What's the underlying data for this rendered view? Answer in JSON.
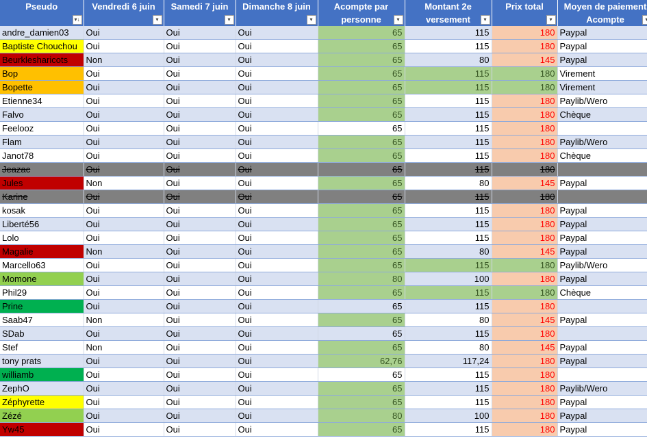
{
  "headers": [
    {
      "l1": "Pseudo",
      "l2": "",
      "filter": "sort-filter-icon"
    },
    {
      "l1": "Vendredi 6 juin",
      "l2": "",
      "filter": "dropdown-filter-icon"
    },
    {
      "l1": "Samedi 7 juin",
      "l2": "",
      "filter": "dropdown-filter-icon"
    },
    {
      "l1": "Dimanche 8 juin",
      "l2": "",
      "filter": "dropdown-filter-icon"
    },
    {
      "l1": "Acompte par",
      "l2": "personne",
      "filter": "dropdown-filter-icon"
    },
    {
      "l1": "Montant 2e",
      "l2": "versement",
      "filter": "dropdown-filter-icon"
    },
    {
      "l1": "Prix total",
      "l2": "",
      "filter": "dropdown-filter-icon"
    },
    {
      "l1": "Moyen de paiement",
      "l2": "Acompte",
      "filter": "dropdown-filter-icon"
    }
  ],
  "filter_glyphs": {
    "sort": "▾↓",
    "dropdown": "▾"
  },
  "colors": {
    "header": "#4472c4",
    "band": "#d9e1f2",
    "green_cell": "#a9d08e",
    "salmon_cell": "#f8cbad",
    "struck_row": "#808080",
    "yellow": "#ffff00",
    "red": "#c00000",
    "orange": "#ffc000",
    "light_green": "#92d050",
    "green": "#00b050"
  },
  "rows": [
    {
      "pseudo": "andre_damien03",
      "p": "",
      "v": "Oui",
      "s": "Oui",
      "d": "Oui",
      "a": "65",
      "ag": true,
      "m": "115",
      "t": "180",
      "tc": "salmon",
      "pay": "Paypal",
      "struck": false
    },
    {
      "pseudo": "Baptiste Chouchou",
      "p": "yellow",
      "v": "Oui",
      "s": "Oui",
      "d": "Oui",
      "a": "65",
      "ag": true,
      "m": "115",
      "t": "180",
      "tc": "salmon",
      "pay": "Paypal",
      "struck": false
    },
    {
      "pseudo": "Beurklesharicots",
      "p": "red",
      "v": "Non",
      "s": "Oui",
      "d": "Oui",
      "a": "65",
      "ag": true,
      "m": "80",
      "t": "145",
      "tc": "salmon",
      "pay": "Paypal",
      "struck": false
    },
    {
      "pseudo": "Bop",
      "p": "orange",
      "v": "Oui",
      "s": "Oui",
      "d": "Oui",
      "a": "65",
      "ag": true,
      "m": "115",
      "mg": true,
      "t": "180",
      "tc": "green",
      "pay": "Virement",
      "struck": false
    },
    {
      "pseudo": "Bopette",
      "p": "orange",
      "v": "Oui",
      "s": "Oui",
      "d": "Oui",
      "a": "65",
      "ag": true,
      "m": "115",
      "mg": true,
      "t": "180",
      "tc": "green",
      "pay": "Virement",
      "struck": false
    },
    {
      "pseudo": "Etienne34",
      "p": "",
      "v": "Oui",
      "s": "Oui",
      "d": "Oui",
      "a": "65",
      "ag": true,
      "m": "115",
      "t": "180",
      "tc": "salmon",
      "pay": "Paylib/Wero",
      "struck": false
    },
    {
      "pseudo": "Falvo",
      "p": "",
      "v": "Oui",
      "s": "Oui",
      "d": "Oui",
      "a": "65",
      "ag": true,
      "m": "115",
      "t": "180",
      "tc": "salmon",
      "pay": "Chèque",
      "struck": false
    },
    {
      "pseudo": "Feelooz",
      "p": "",
      "v": "Oui",
      "s": "Oui",
      "d": "Oui",
      "a": "65",
      "ag": false,
      "m": "115",
      "t": "180",
      "tc": "salmon",
      "pay": "",
      "struck": false
    },
    {
      "pseudo": "Flam",
      "p": "",
      "v": "Oui",
      "s": "Oui",
      "d": "Oui",
      "a": "65",
      "ag": true,
      "m": "115",
      "t": "180",
      "tc": "salmon",
      "pay": "Paylib/Wero",
      "struck": false
    },
    {
      "pseudo": "Janot78",
      "p": "",
      "v": "Oui",
      "s": "Oui",
      "d": "Oui",
      "a": "65",
      "ag": true,
      "m": "115",
      "t": "180",
      "tc": "salmon",
      "pay": "Chèque",
      "struck": false
    },
    {
      "pseudo": "Jeazac",
      "p": "",
      "v": "Oui",
      "s": "Oui",
      "d": "Oui",
      "a": "65",
      "ag": false,
      "m": "115",
      "t": "180",
      "tc": "salmon",
      "pay": "",
      "struck": true
    },
    {
      "pseudo": "Jules",
      "p": "red",
      "v": "Non",
      "s": "Oui",
      "d": "Oui",
      "a": "65",
      "ag": true,
      "m": "80",
      "t": "145",
      "tc": "salmon",
      "pay": "Paypal",
      "struck": false
    },
    {
      "pseudo": "Karine",
      "p": "",
      "v": "Oui",
      "s": "Oui",
      "d": "Oui",
      "a": "65",
      "ag": false,
      "m": "115",
      "t": "180",
      "tc": "salmon",
      "pay": "",
      "struck": true
    },
    {
      "pseudo": "kosak",
      "p": "",
      "v": "Oui",
      "s": "Oui",
      "d": "Oui",
      "a": "65",
      "ag": true,
      "m": "115",
      "t": "180",
      "tc": "salmon",
      "pay": "Paypal",
      "struck": false
    },
    {
      "pseudo": "Liberté56",
      "p": "",
      "v": "Oui",
      "s": "Oui",
      "d": "Oui",
      "a": "65",
      "ag": true,
      "m": "115",
      "t": "180",
      "tc": "salmon",
      "pay": "Paypal",
      "struck": false
    },
    {
      "pseudo": "Lolo",
      "p": "",
      "v": "Oui",
      "s": "Oui",
      "d": "Oui",
      "a": "65",
      "ag": true,
      "m": "115",
      "t": "180",
      "tc": "salmon",
      "pay": "Paypal",
      "struck": false
    },
    {
      "pseudo": "Magalie",
      "p": "red",
      "v": "Non",
      "s": "Oui",
      "d": "Oui",
      "a": "65",
      "ag": true,
      "m": "80",
      "t": "145",
      "tc": "salmon",
      "pay": "Paypal",
      "struck": false
    },
    {
      "pseudo": "Marcello63",
      "p": "",
      "v": "Oui",
      "s": "Oui",
      "d": "Oui",
      "a": "65",
      "ag": true,
      "m": "115",
      "mg": true,
      "t": "180",
      "tc": "green",
      "pay": "Paylib/Wero",
      "struck": false
    },
    {
      "pseudo": "Momone",
      "p": "lgreen",
      "v": "Oui",
      "s": "Oui",
      "d": "Oui",
      "a": "80",
      "ag": true,
      "m": "100",
      "t": "180",
      "tc": "salmon",
      "pay": "Paypal",
      "struck": false
    },
    {
      "pseudo": "Phil29",
      "p": "",
      "v": "Oui",
      "s": "Oui",
      "d": "Oui",
      "a": "65",
      "ag": true,
      "m": "115",
      "mg": true,
      "t": "180",
      "tc": "green",
      "pay": "Chèque",
      "struck": false
    },
    {
      "pseudo": "Prine",
      "p": "green",
      "v": "Oui",
      "s": "Oui",
      "d": "Oui",
      "a": "65",
      "ag": false,
      "m": "115",
      "t": "180",
      "tc": "salmon",
      "pay": "",
      "struck": false
    },
    {
      "pseudo": "Saab47",
      "p": "",
      "v": "Non",
      "s": "Oui",
      "d": "Oui",
      "a": "65",
      "ag": true,
      "m": "80",
      "t": "145",
      "tc": "salmon",
      "pay": "Paypal",
      "struck": false
    },
    {
      "pseudo": "SDab",
      "p": "",
      "v": "Oui",
      "s": "Oui",
      "d": "Oui",
      "a": "65",
      "ag": false,
      "m": "115",
      "t": "180",
      "tc": "salmon",
      "pay": "",
      "struck": false
    },
    {
      "pseudo": "Stef",
      "p": "",
      "v": "Non",
      "s": "Oui",
      "d": "Oui",
      "a": "65",
      "ag": true,
      "m": "80",
      "t": "145",
      "tc": "salmon",
      "pay": "Paypal",
      "struck": false
    },
    {
      "pseudo": "tony prats",
      "p": "",
      "v": "Oui",
      "s": "Oui",
      "d": "Oui",
      "a": "62,76",
      "ag": true,
      "m": "117,24",
      "t": "180",
      "tc": "salmon",
      "pay": "Paypal",
      "struck": false
    },
    {
      "pseudo": "williamb",
      "p": "green",
      "v": "Oui",
      "s": "Oui",
      "d": "Oui",
      "a": "65",
      "ag": false,
      "m": "115",
      "t": "180",
      "tc": "salmon",
      "pay": "",
      "struck": false
    },
    {
      "pseudo": "ZephO",
      "p": "",
      "v": "Oui",
      "s": "Oui",
      "d": "Oui",
      "a": "65",
      "ag": true,
      "m": "115",
      "t": "180",
      "tc": "salmon",
      "pay": "Paylib/Wero",
      "struck": false
    },
    {
      "pseudo": "Zéphyrette",
      "p": "yellow",
      "v": "Oui",
      "s": "Oui",
      "d": "Oui",
      "a": "65",
      "ag": true,
      "m": "115",
      "t": "180",
      "tc": "salmon",
      "pay": "Paypal",
      "struck": false
    },
    {
      "pseudo": "Zézé",
      "p": "lgreen",
      "v": "Oui",
      "s": "Oui",
      "d": "Oui",
      "a": "80",
      "ag": true,
      "m": "100",
      "t": "180",
      "tc": "salmon",
      "pay": "Paypal",
      "struck": false
    },
    {
      "pseudo": "Yw45",
      "p": "red",
      "v": "Oui",
      "s": "Oui",
      "d": "Oui",
      "a": "65",
      "ag": true,
      "m": "115",
      "t": "180",
      "tc": "salmon",
      "pay": "Paypal",
      "struck": false
    }
  ]
}
